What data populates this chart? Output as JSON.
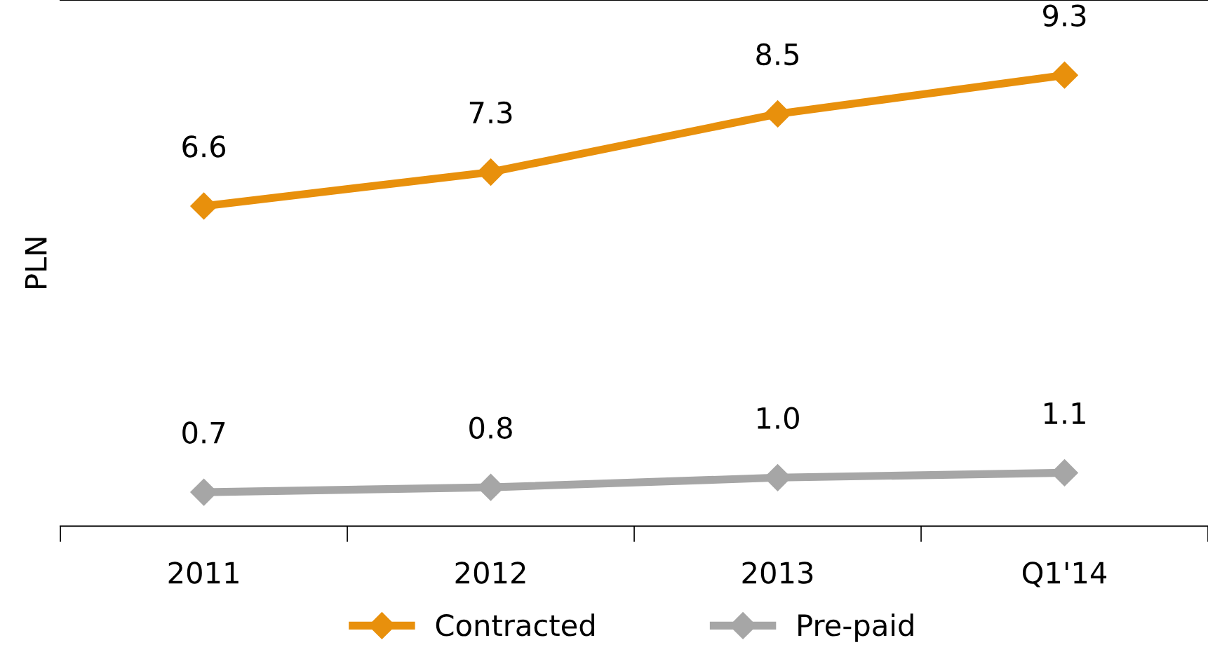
{
  "chart_data": {
    "type": "line",
    "ylabel": "PLN",
    "categories": [
      "2011",
      "2012",
      "2013",
      "Q1'14"
    ],
    "series": [
      {
        "name": "Contracted",
        "color": "#e8900c",
        "values": [
          6.6,
          7.3,
          8.5,
          9.3
        ],
        "value_labels": [
          "6.6",
          "7.3",
          "8.5",
          "9.3"
        ]
      },
      {
        "name": "Pre-paid",
        "color": "#a6a6a6",
        "values": [
          0.7,
          0.8,
          1.0,
          1.1
        ],
        "value_labels": [
          "0.7",
          "0.8",
          "1.0",
          "1.1"
        ]
      }
    ],
    "marker": "diamond",
    "line_style": "solid",
    "legend": "bottom"
  }
}
